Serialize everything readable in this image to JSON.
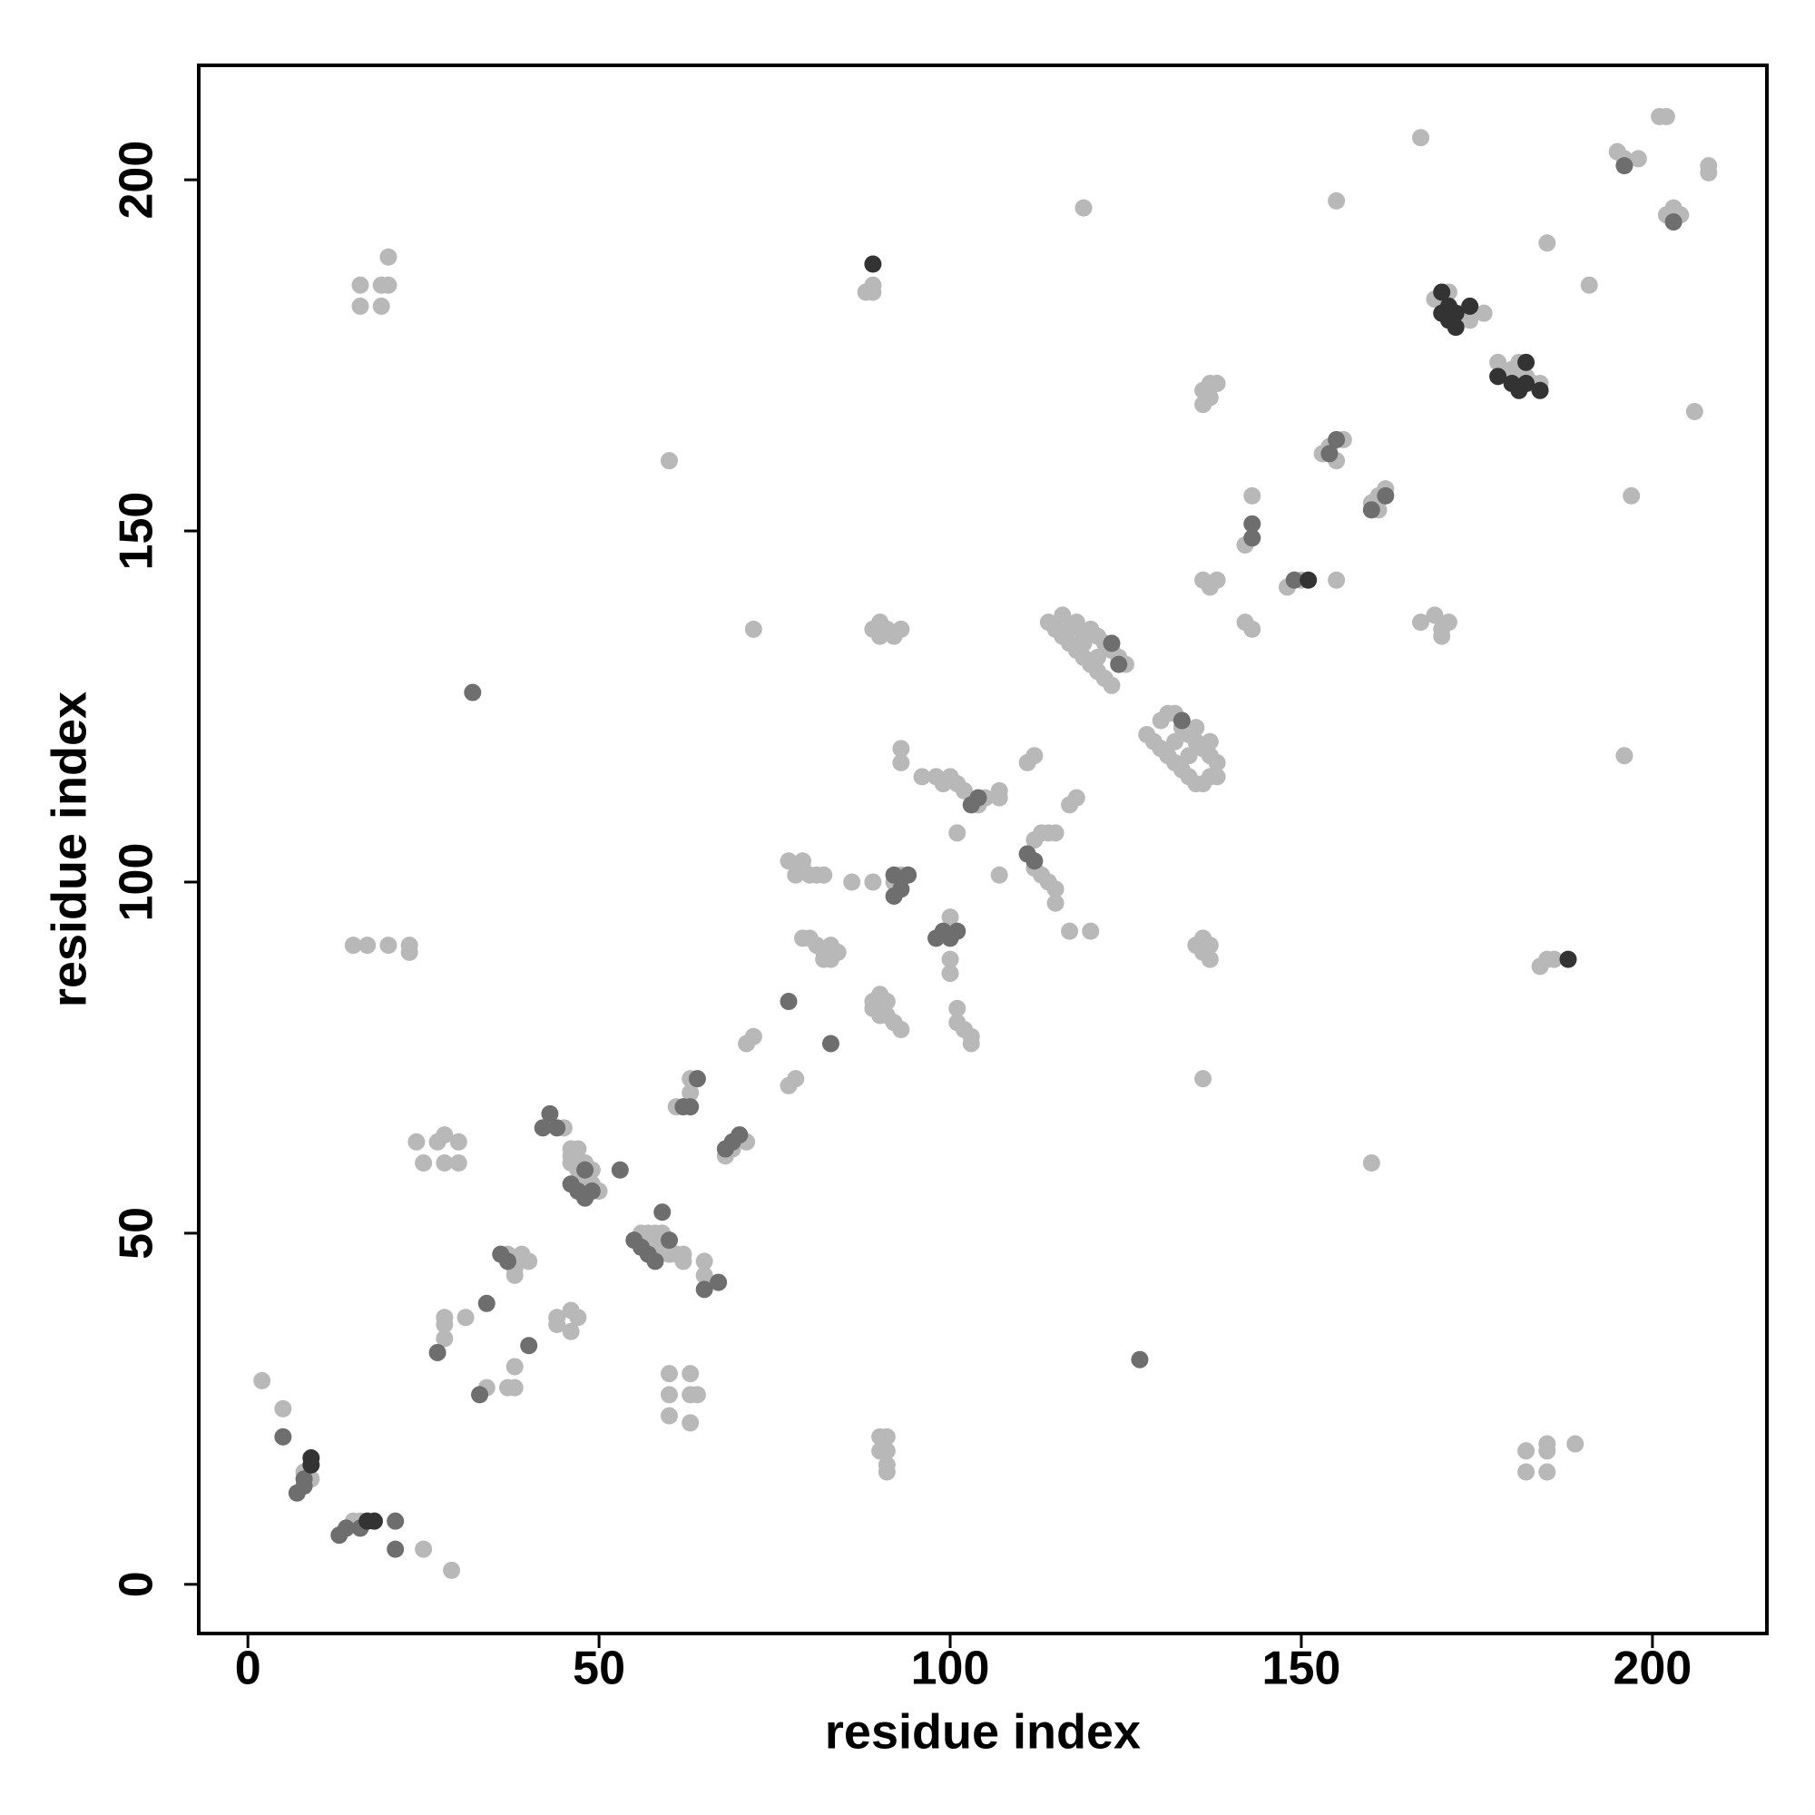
{
  "chart_data": {
    "type": "scatter",
    "xlabel": "residue index",
    "ylabel": "residue index",
    "xlim": [
      -7,
      216.3
    ],
    "ylim": [
      -7,
      216.3
    ],
    "xticks": [
      0,
      50,
      100,
      150,
      200
    ],
    "yticks": [
      0,
      50,
      100,
      150,
      200
    ],
    "grid": false,
    "series": [
      {
        "color": "#b8b8b8",
        "x": [
          2,
          5,
          9,
          8,
          15,
          16,
          25,
          29,
          16,
          16,
          19,
          20,
          19,
          20,
          15,
          17,
          20,
          23,
          23,
          24,
          25,
          27,
          28,
          28,
          30,
          30,
          28,
          28,
          28,
          31,
          34,
          37,
          38,
          38,
          37,
          38,
          39,
          40,
          38,
          44,
          44,
          46,
          47,
          46,
          45,
          46,
          46,
          47,
          48,
          49,
          50,
          46,
          47,
          48,
          49,
          56,
          57,
          58,
          59,
          60,
          61,
          62,
          62,
          60,
          58,
          59,
          60,
          60,
          60,
          63,
          63,
          63,
          64,
          61,
          63,
          63,
          65,
          65,
          68,
          69,
          71,
          71,
          72,
          77,
          78,
          72,
          60,
          77,
          78,
          79,
          80,
          81,
          82,
          79,
          79,
          80,
          81,
          82,
          82,
          83,
          84,
          83,
          86,
          89,
          89,
          90,
          91,
          91,
          92,
          93,
          89,
          90,
          89,
          90,
          91,
          92,
          93,
          90,
          89,
          89,
          88,
          90,
          91,
          91,
          91,
          91,
          90,
          93,
          94,
          92,
          93,
          93,
          96,
          98,
          99,
          100,
          101,
          102,
          104,
          105,
          107,
          107,
          101,
          100,
          100,
          100,
          101,
          101,
          102,
          103,
          103,
          107,
          111,
          112,
          117,
          118,
          112,
          113,
          114,
          115,
          111,
          112,
          113,
          114,
          115,
          115,
          117,
          120,
          119,
          114,
          115,
          116,
          117,
          118,
          119,
          120,
          121,
          122,
          123,
          118,
          120,
          121,
          122,
          123,
          124,
          125,
          119,
          121,
          116,
          117,
          119,
          128,
          129,
          130,
          131,
          132,
          133,
          134,
          135,
          136,
          137,
          138,
          130,
          131,
          132,
          133,
          134,
          135,
          136,
          137,
          138,
          134,
          132,
          135,
          137,
          135,
          136,
          136,
          137,
          137,
          136,
          136,
          137,
          138,
          137,
          136,
          136,
          137,
          138,
          143,
          142,
          143,
          142,
          148,
          150,
          155,
          153,
          154,
          155,
          156,
          155,
          160,
          161,
          162,
          161,
          160,
          167,
          167,
          169,
          170,
          171,
          170,
          169,
          171,
          173,
          174,
          176,
          178,
          180,
          181,
          182,
          183,
          184,
          182,
          182,
          185,
          185,
          185,
          189,
          184,
          185,
          186,
          185,
          191,
          195,
          196,
          198,
          201,
          202,
          202,
          203,
          204,
          208,
          208,
          206,
          197,
          196
        ],
        "y": [
          29,
          25,
          15,
          16,
          9,
          9,
          5,
          2,
          185,
          182,
          185,
          185,
          182,
          189,
          91,
          91,
          91,
          91,
          90,
          63,
          60,
          63,
          64,
          60,
          63,
          60,
          38,
          37,
          35,
          38,
          28,
          28,
          28,
          31,
          47,
          45,
          47,
          46,
          44,
          38,
          37,
          39,
          38,
          36,
          65,
          62,
          60,
          59,
          58,
          57,
          56,
          61,
          62,
          60,
          59,
          50,
          50,
          49,
          48,
          47,
          47,
          46,
          47,
          49,
          50,
          50,
          30,
          27,
          24,
          30,
          27,
          23,
          27,
          68,
          70,
          72,
          46,
          44,
          61,
          62,
          63,
          77,
          78,
          71,
          72,
          136,
          160,
          103,
          101,
          103,
          101,
          101,
          101,
          102,
          92,
          92,
          91,
          90,
          89,
          89,
          90,
          91,
          100,
          100,
          83,
          84,
          83,
          81,
          80,
          79,
          82,
          81,
          136,
          137,
          136,
          135,
          136,
          135,
          185,
          184,
          184,
          21,
          21,
          19,
          17,
          16,
          19,
          101,
          101,
          100,
          119,
          117,
          115,
          115,
          114,
          115,
          114,
          113,
          111,
          112,
          113,
          112,
          107,
          95,
          89,
          87,
          82,
          80,
          79,
          78,
          77,
          101,
          117,
          118,
          111,
          112,
          106,
          107,
          107,
          107,
          104,
          102,
          101,
          100,
          99,
          97,
          93,
          93,
          196,
          137,
          136,
          135,
          134,
          133,
          132,
          131,
          130,
          129,
          128,
          137,
          136,
          135,
          134,
          133,
          132,
          131,
          134,
          132,
          138,
          136,
          135,
          121,
          120,
          119,
          118,
          117,
          116,
          115,
          114,
          114,
          115,
          115,
          123,
          124,
          124,
          122,
          121,
          120,
          119,
          118,
          117,
          118,
          120,
          122,
          120,
          91,
          92,
          90,
          89,
          91,
          72,
          170,
          171,
          171,
          169,
          168,
          143,
          142,
          143,
          155,
          137,
          136,
          148,
          142,
          143,
          143,
          161,
          162,
          160,
          163,
          197,
          154,
          155,
          156,
          153,
          60,
          206,
          137,
          138,
          136,
          137,
          135,
          183,
          184,
          181,
          180,
          181,
          174,
          173,
          174,
          172,
          171,
          171,
          16,
          19,
          20,
          19,
          16,
          20,
          88,
          89,
          89,
          191,
          185,
          204,
          203,
          203,
          209,
          209,
          195,
          196,
          195,
          202,
          201,
          167,
          155,
          118
        ]
      },
      {
        "color": "#6e6e6e",
        "x": [
          5,
          7,
          8,
          8,
          13,
          14,
          16,
          21,
          21,
          27,
          34,
          33,
          40,
          36,
          37,
          42,
          43,
          46,
          47,
          48,
          49,
          48,
          53,
          44,
          55,
          56,
          57,
          58,
          59,
          60,
          62,
          63,
          64,
          65,
          67,
          68,
          69,
          70,
          77,
          83,
          92,
          93,
          92,
          94,
          98,
          99,
          100,
          101,
          103,
          104,
          111,
          112,
          32,
          127,
          123,
          124,
          133,
          143,
          143,
          149,
          154,
          155,
          162,
          160,
          196,
          203
        ],
        "y": [
          21,
          13,
          14,
          15,
          7,
          8,
          8,
          9,
          5,
          33,
          40,
          27,
          34,
          47,
          46,
          65,
          67,
          57,
          56,
          55,
          56,
          59,
          59,
          65,
          49,
          48,
          47,
          46,
          53,
          49,
          68,
          68,
          72,
          42,
          43,
          62,
          63,
          64,
          83,
          77,
          98,
          99,
          101,
          101,
          92,
          93,
          92,
          93,
          111,
          112,
          104,
          103,
          127,
          32,
          134,
          131,
          123,
          151,
          149,
          143,
          161,
          163,
          155,
          153,
          202,
          194
        ]
      },
      {
        "color": "#333333",
        "x": [
          9,
          9,
          17,
          18,
          89,
          188,
          151,
          170,
          170,
          171,
          172,
          171,
          172,
          174,
          178,
          180,
          181,
          182,
          182,
          184
        ],
        "y": [
          17,
          18,
          9,
          9,
          188,
          89,
          143,
          184,
          181,
          182,
          179,
          180,
          181,
          182,
          172,
          171,
          170,
          174,
          171,
          170
        ]
      }
    ]
  }
}
